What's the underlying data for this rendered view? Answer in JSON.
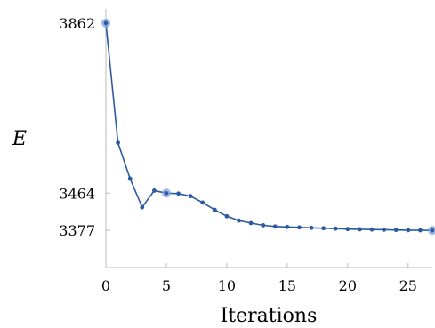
{
  "chart_data": {
    "type": "line",
    "xlabel": "Iterations",
    "ylabel": "E",
    "x_ticks": [
      0,
      5,
      10,
      15,
      20,
      25
    ],
    "y_ticks": [
      3377,
      3464,
      3862
    ],
    "xlim": [
      0,
      27
    ],
    "ylim": [
      3290,
      3895
    ],
    "grid": false,
    "series_color": "#2c5aa0",
    "highlight_color": "#7fa2d8",
    "series": [
      {
        "x": [
          0,
          1,
          2,
          3,
          4,
          5,
          6,
          7,
          8,
          9,
          10,
          11,
          12,
          13,
          14,
          15,
          16,
          17,
          18,
          19,
          20,
          21,
          22,
          23,
          24,
          25,
          26,
          27
        ],
        "values": [
          3862,
          3582,
          3498,
          3431,
          3470,
          3464,
          3463,
          3457,
          3442,
          3425,
          3410,
          3400,
          3394,
          3389,
          3386,
          3385,
          3384,
          3383,
          3382,
          3381,
          3380,
          3379.5,
          3379,
          3378.5,
          3378,
          3377.5,
          3377.2,
          3377
        ]
      }
    ],
    "highlighted_points": [
      {
        "x": 0,
        "y": 3862
      },
      {
        "x": 5,
        "y": 3464
      },
      {
        "x": 27,
        "y": 3377
      }
    ]
  }
}
